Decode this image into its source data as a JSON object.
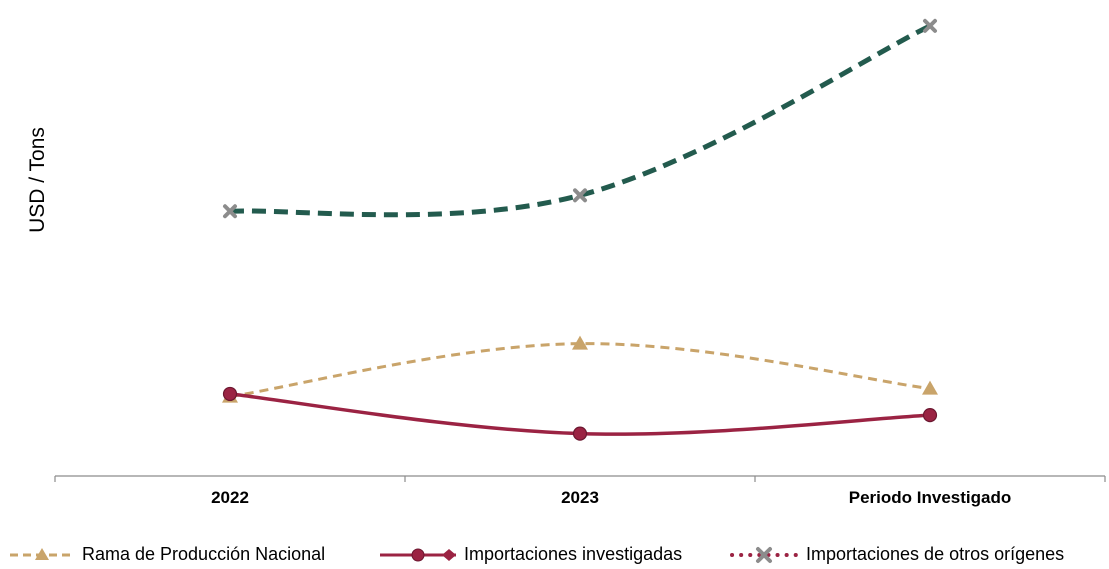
{
  "chart_data": {
    "type": "line",
    "categories": [
      "2022",
      "2023",
      "Periodo Investigado"
    ],
    "ylabel": "USD / Tons",
    "xlabel": "",
    "title": "",
    "grid": false,
    "legend_position": "bottom",
    "y_ticks_shown": false,
    "series": [
      {
        "name": "Rama de Producción Nacional",
        "values": [
          12,
          22,
          13.5
        ],
        "color": "#C9A46A",
        "style": "dashed",
        "marker": "triangle"
      },
      {
        "name": "Importaciones investigadas",
        "values": [
          12.5,
          5,
          8.5
        ],
        "color": "#9B2343",
        "style": "solid",
        "marker": "circle"
      },
      {
        "name": "Importaciones de otros orígenes",
        "values": [
          47,
          50,
          82
        ],
        "color": "#235B4E",
        "style": "dashed",
        "marker": "x"
      }
    ],
    "ylim": [
      -3,
      85
    ]
  },
  "legend": [
    {
      "label": "Rama de Producción Nacional"
    },
    {
      "label": "Importaciones investigadas"
    },
    {
      "label": "Importaciones de otros orígenes"
    }
  ]
}
